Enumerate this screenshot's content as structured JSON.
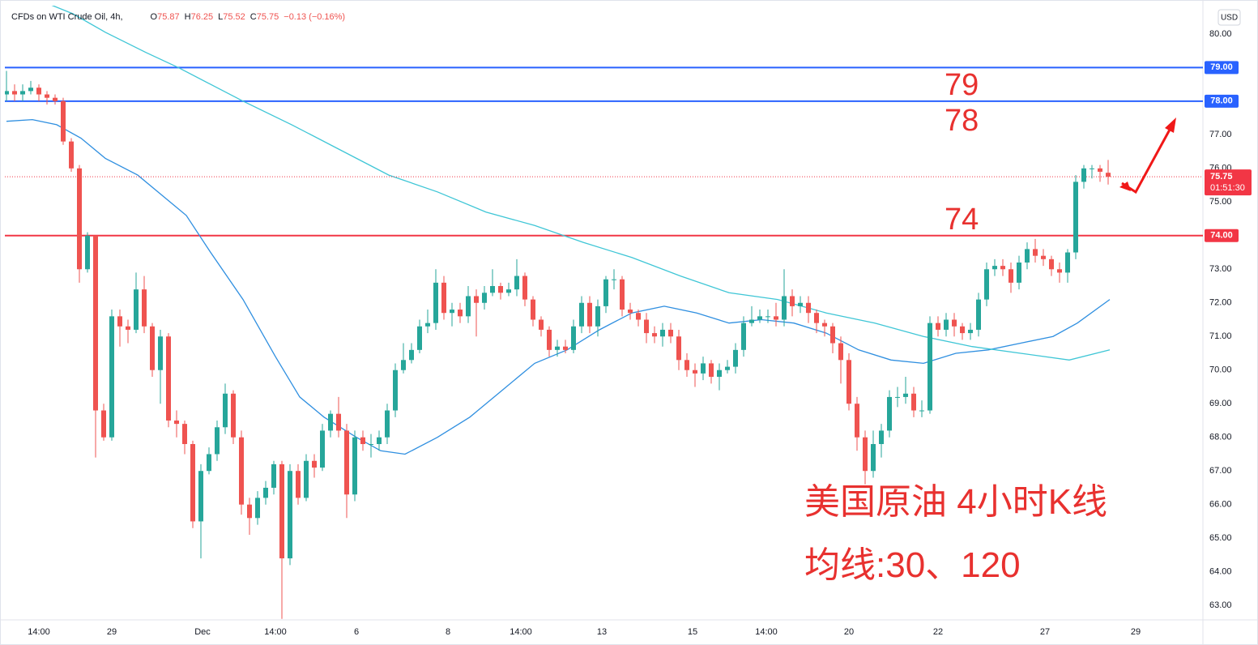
{
  "chart_data": {
    "type": "candlestick",
    "title": "CFDs on WTI Crude Oil, 4h,",
    "ohlc_letters": [
      "O",
      "H",
      "L",
      "C"
    ],
    "change": "−0.13 (−0.16%)",
    "currency": "USD",
    "up_color": "#26a69a",
    "down_color": "#ef5350",
    "xlim": [
      -0.2,
      147.7
    ],
    "ylim": [
      62.57,
      80.84
    ],
    "xticks": [
      {
        "value": 4,
        "label": "14:00"
      },
      {
        "value": 13,
        "label": "29"
      },
      {
        "value": 24.2,
        "label": "Dec"
      },
      {
        "value": 33.2,
        "label": "14:00"
      },
      {
        "value": 43.2,
        "label": "6"
      },
      {
        "value": 54.5,
        "label": "8"
      },
      {
        "value": 63.5,
        "label": "14:00"
      },
      {
        "value": 73.5,
        "label": "13"
      },
      {
        "value": 84.7,
        "label": "15"
      },
      {
        "value": 93.8,
        "label": "14:00"
      },
      {
        "value": 104,
        "label": "20"
      },
      {
        "value": 115,
        "label": "22"
      },
      {
        "value": 128.2,
        "label": "27"
      },
      {
        "value": 139.4,
        "label": "29"
      }
    ],
    "yticks": [
      {
        "value": 63,
        "label": "63.00"
      },
      {
        "value": 64,
        "label": "64.00"
      },
      {
        "value": 65,
        "label": "65.00"
      },
      {
        "value": 66,
        "label": "66.00"
      },
      {
        "value": 67,
        "label": "67.00"
      },
      {
        "value": 68,
        "label": "68.00"
      },
      {
        "value": 69,
        "label": "69.00"
      },
      {
        "value": 70,
        "label": "70.00"
      },
      {
        "value": 71,
        "label": "71.00"
      },
      {
        "value": 72,
        "label": "72.00"
      },
      {
        "value": 73,
        "label": "73.00"
      },
      {
        "value": 74,
        "label": "74.00"
      },
      {
        "value": 75,
        "label": "75.00"
      },
      {
        "value": 76,
        "label": "76.00"
      },
      {
        "value": 77,
        "label": "77.00"
      },
      {
        "value": 78,
        "label": "78.00"
      },
      {
        "value": 79,
        "label": "79.00"
      },
      {
        "value": 80,
        "label": "80.00"
      }
    ],
    "open": [
      78.2,
      78.3,
      78.2,
      78.3,
      78.4,
      78.2,
      78.1,
      78.0,
      76.8,
      76.0,
      73.0,
      74.0,
      68.8,
      68.0,
      71.6,
      71.3,
      71.2,
      72.4,
      71.3,
      70.0,
      71.0,
      68.5,
      68.4,
      67.8,
      65.5,
      67.0,
      67.5,
      68.3,
      69.3,
      68.0,
      66.0,
      65.6,
      66.2,
      66.5,
      67.2,
      64.4,
      67.0,
      66.2,
      67.3,
      67.1,
      68.2,
      68.7,
      68.2,
      66.3,
      68.0,
      67.8,
      67.8,
      68.0,
      68.8,
      70.0,
      70.3,
      70.6,
      71.3,
      71.4,
      72.6,
      71.7,
      71.8,
      71.6,
      72.2,
      72.0,
      72.3,
      72.5,
      72.3,
      72.4,
      72.8,
      72.1,
      71.5,
      71.2,
      70.6,
      70.7,
      70.6,
      71.3,
      72.0,
      71.3,
      71.9,
      72.7,
      72.7,
      71.8,
      71.7,
      71.5,
      71.1,
      71.0,
      71.2,
      71.0,
      70.3,
      70.0,
      69.9,
      70.2,
      69.8,
      70.0,
      70.1,
      70.6,
      71.4,
      71.5,
      71.6,
      71.6,
      71.5,
      72.2,
      71.9,
      72.0,
      71.7,
      71.4,
      71.3,
      70.8,
      70.3,
      69.0,
      68.0,
      67.0,
      67.8,
      68.2,
      69.2,
      69.2,
      69.3,
      68.8,
      68.8,
      71.4,
      71.2,
      71.5,
      71.3,
      71.1,
      71.2,
      72.1,
      73.0,
      73.1,
      73.0,
      72.6,
      73.2,
      73.6,
      73.4,
      73.3,
      73.0,
      72.9,
      73.5,
      75.6,
      76.0,
      76.0,
      75.87
    ],
    "high": [
      78.9,
      78.5,
      78.5,
      78.6,
      78.5,
      78.3,
      78.2,
      78.1,
      76.9,
      76.1,
      74.1,
      74.0,
      69.0,
      71.8,
      71.8,
      71.5,
      72.9,
      72.8,
      71.4,
      71.2,
      71.1,
      68.8,
      68.5,
      67.9,
      67.2,
      67.7,
      68.5,
      69.6,
      69.4,
      68.2,
      66.2,
      66.4,
      66.7,
      67.3,
      67.3,
      67.2,
      67.2,
      67.5,
      67.5,
      68.4,
      68.8,
      69.2,
      68.4,
      68.2,
      68.2,
      68.1,
      68.2,
      69.0,
      70.2,
      70.8,
      70.8,
      71.5,
      71.8,
      73.0,
      72.8,
      72.0,
      72.0,
      72.5,
      72.4,
      72.5,
      73.0,
      72.6,
      72.6,
      73.3,
      72.9,
      72.2,
      71.6,
      71.3,
      70.9,
      70.9,
      71.5,
      72.2,
      72.2,
      72.1,
      72.8,
      73.0,
      72.8,
      72.0,
      71.8,
      71.7,
      71.3,
      71.4,
      71.4,
      71.2,
      70.5,
      70.2,
      70.4,
      70.3,
      70.2,
      70.3,
      70.8,
      71.6,
      71.9,
      71.8,
      71.8,
      72.0,
      73.0,
      72.4,
      72.2,
      72.2,
      71.8,
      71.5,
      71.4,
      71.0,
      70.5,
      69.2,
      68.2,
      68.2,
      68.4,
      69.4,
      69.5,
      69.8,
      69.5,
      69.1,
      71.6,
      71.6,
      71.7,
      71.7,
      71.4,
      71.4,
      72.3,
      73.2,
      73.3,
      73.3,
      73.2,
      73.4,
      73.8,
      73.9,
      73.6,
      73.4,
      73.2,
      73.6,
      75.8,
      76.1,
      76.1,
      76.1,
      76.25
    ],
    "low": [
      78.0,
      78.0,
      78.0,
      78.2,
      78.0,
      77.9,
      77.9,
      76.7,
      75.9,
      72.6,
      72.9,
      67.4,
      67.9,
      67.9,
      70.7,
      70.8,
      71.1,
      71.1,
      69.8,
      69.0,
      68.3,
      68.0,
      67.5,
      65.3,
      64.4,
      66.9,
      67.3,
      68.1,
      67.8,
      65.7,
      65.1,
      65.4,
      66.0,
      66.3,
      62.6,
      64.2,
      66.0,
      66.1,
      66.8,
      67.0,
      68.0,
      68.0,
      65.6,
      66.1,
      67.6,
      67.4,
      67.6,
      67.8,
      68.6,
      69.9,
      70.2,
      70.5,
      71.1,
      71.2,
      71.5,
      71.3,
      71.4,
      71.4,
      71.0,
      71.8,
      72.2,
      72.1,
      72.2,
      72.2,
      71.9,
      71.3,
      71.0,
      70.4,
      70.4,
      70.5,
      70.5,
      71.1,
      71.1,
      71.0,
      71.7,
      72.4,
      71.6,
      71.5,
      71.3,
      70.8,
      70.8,
      70.7,
      70.8,
      70.0,
      69.8,
      69.5,
      69.7,
      69.6,
      69.4,
      69.9,
      69.9,
      70.4,
      71.3,
      71.4,
      71.4,
      71.3,
      71.3,
      71.6,
      71.7,
      71.4,
      71.1,
      71.0,
      70.5,
      69.6,
      68.8,
      67.6,
      66.6,
      66.8,
      67.4,
      68.0,
      68.9,
      69.0,
      68.6,
      68.6,
      68.7,
      71.0,
      71.0,
      71.0,
      70.9,
      70.9,
      71.0,
      71.9,
      72.8,
      72.8,
      72.3,
      72.4,
      73.0,
      73.2,
      73.1,
      72.8,
      72.6,
      72.6,
      73.3,
      75.4,
      75.7,
      75.6,
      75.52
    ],
    "close": [
      78.3,
      78.2,
      78.3,
      78.4,
      78.2,
      78.1,
      78.0,
      76.8,
      76.0,
      73.0,
      74.0,
      68.8,
      68.0,
      71.6,
      71.3,
      71.2,
      72.4,
      71.3,
      70.0,
      71.0,
      68.5,
      68.4,
      67.8,
      65.5,
      67.0,
      67.5,
      68.3,
      69.3,
      68.0,
      66.0,
      65.6,
      66.2,
      66.5,
      67.2,
      64.4,
      67.0,
      66.2,
      67.3,
      67.1,
      68.2,
      68.7,
      68.2,
      66.3,
      68.0,
      67.8,
      67.8,
      68.0,
      68.8,
      70.0,
      70.3,
      70.6,
      71.3,
      71.4,
      72.6,
      71.7,
      71.8,
      71.6,
      72.2,
      72.0,
      72.3,
      72.5,
      72.3,
      72.4,
      72.8,
      72.1,
      71.5,
      71.2,
      70.6,
      70.7,
      70.6,
      71.3,
      72.0,
      71.3,
      71.9,
      72.7,
      72.7,
      71.8,
      71.7,
      71.5,
      71.1,
      71.0,
      71.2,
      71.0,
      70.3,
      70.0,
      69.9,
      70.2,
      69.8,
      70.0,
      70.1,
      70.6,
      71.4,
      71.5,
      71.6,
      71.6,
      71.5,
      72.2,
      71.9,
      72.0,
      71.7,
      71.4,
      71.3,
      70.8,
      70.3,
      69.0,
      68.0,
      67.0,
      67.8,
      68.2,
      69.2,
      69.2,
      69.3,
      68.8,
      68.8,
      71.4,
      71.2,
      71.5,
      71.3,
      71.1,
      71.2,
      72.1,
      73.0,
      73.1,
      73.0,
      72.6,
      73.2,
      73.6,
      73.4,
      73.3,
      73.0,
      72.9,
      73.5,
      75.6,
      76.0,
      76.0,
      75.9,
      75.75
    ],
    "series": [
      {
        "color": "#2f8fe0",
        "x": [
          0,
          3.2,
          6.2,
          9.2,
          12.2,
          16.2,
          19.2,
          22.2,
          25.2,
          29.2,
          33.2,
          36.2,
          39.2,
          43.2,
          46.2,
          49.2,
          53.2,
          57.2,
          61.2,
          65.2,
          69.2,
          73.2,
          77.2,
          81.2,
          85.2,
          89.2,
          93.2,
          97.2,
          101.2,
          105.2,
          109.2,
          113.2,
          117.2,
          121.2,
          125.2,
          129.2,
          132.2,
          136.2
        ],
        "values": [
          77.4,
          77.45,
          77.3,
          76.9,
          76.3,
          75.8,
          75.2,
          74.6,
          73.5,
          72.1,
          70.4,
          69.2,
          68.6,
          68.0,
          67.6,
          67.5,
          68.0,
          68.6,
          69.4,
          70.2,
          70.6,
          71.2,
          71.7,
          71.9,
          71.7,
          71.4,
          71.5,
          71.4,
          71.1,
          70.6,
          70.3,
          70.2,
          70.5,
          70.6,
          70.8,
          71.0,
          71.4,
          72.1
        ]
      },
      {
        "color": "#3fc6d6",
        "x": [
          0,
          8.2,
          12.2,
          17.2,
          21.2,
          25.2,
          29.2,
          35.2,
          41.2,
          47.2,
          53.2,
          59.2,
          65.2,
          71.2,
          77.2,
          83.2,
          89.2,
          95.2,
          101.2,
          107.2,
          113.2,
          119.2,
          125.2,
          131.2,
          136.2
        ],
        "values": [
          81.4,
          80.6,
          80.05,
          79.45,
          79.0,
          78.5,
          78.0,
          77.3,
          76.55,
          75.8,
          75.3,
          74.7,
          74.3,
          73.8,
          73.35,
          72.8,
          72.3,
          72.1,
          71.7,
          71.4,
          71.0,
          70.7,
          70.5,
          70.3,
          70.6
        ]
      }
    ],
    "levels": [
      {
        "value": 79,
        "label": "79.00",
        "color": "#2962ff"
      },
      {
        "value": 78,
        "label": "78.00",
        "color": "#2962ff"
      },
      {
        "value": 74,
        "label": "74.00",
        "color": "#f23645"
      }
    ],
    "last": {
      "value": 75.75,
      "countdown": "01:51:30",
      "color": "#f23645"
    },
    "annotations": [
      "79",
      "78",
      "74",
      "美国原油 4小时K线",
      "均线:30、120"
    ]
  }
}
